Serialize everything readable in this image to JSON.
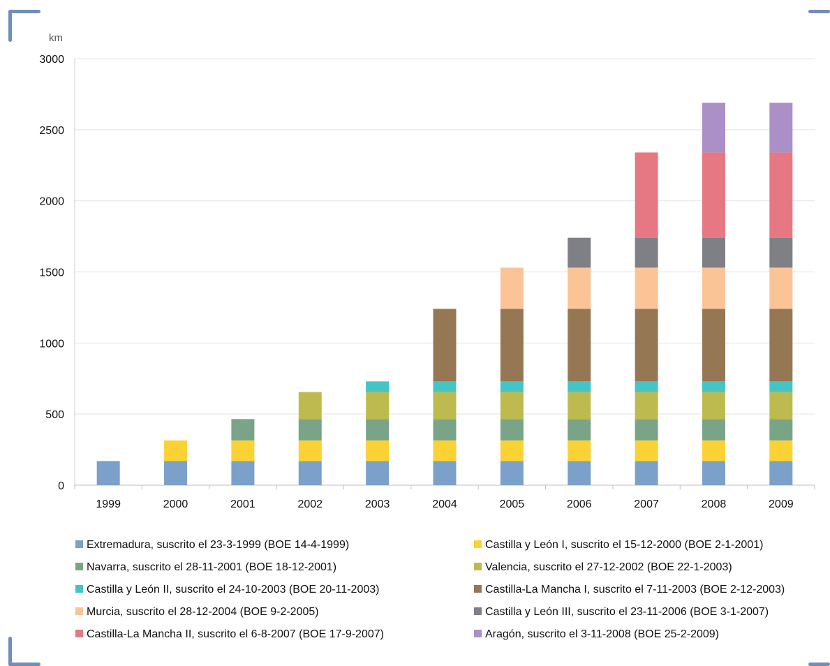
{
  "chart_data": {
    "type": "bar",
    "stacked": true,
    "ylabel": "km",
    "ylim": [
      0,
      3000
    ],
    "yticks": [
      0,
      500,
      1000,
      1500,
      2000,
      2500,
      3000
    ],
    "grid": true,
    "legend_position": "bottom",
    "categories": [
      "1999",
      "2000",
      "2001",
      "2002",
      "2003",
      "2004",
      "2005",
      "2006",
      "2007",
      "2008",
      "2009"
    ],
    "series": [
      {
        "name": "Extremadura, suscrito el 23-3-1999 (BOE 14-4-1999)",
        "color": "#7ba0ca",
        "values": [
          170,
          170,
          170,
          170,
          170,
          170,
          170,
          170,
          170,
          170,
          170
        ]
      },
      {
        "name": "Castilla y León I, suscrito el 15-12-2000 (BOE 2-1-2001)",
        "color": "#fbd233",
        "values": [
          0,
          145,
          145,
          145,
          145,
          145,
          145,
          145,
          145,
          145,
          145
        ]
      },
      {
        "name": "Navarra, suscrito el 28-11-2001 (BOE 18-12-2001)",
        "color": "#79a488",
        "values": [
          0,
          0,
          150,
          150,
          150,
          150,
          150,
          150,
          150,
          150,
          150
        ]
      },
      {
        "name": "Valencia, suscrito el 27-12-2002 (BOE 22-1-2003)",
        "color": "#bdbb50",
        "values": [
          0,
          0,
          0,
          190,
          190,
          190,
          190,
          190,
          190,
          190,
          190
        ]
      },
      {
        "name": "Castilla y León II, suscrito el 24-10-2003 (BOE 20-11-2003)",
        "color": "#45c3c5",
        "values": [
          0,
          0,
          0,
          0,
          75,
          75,
          75,
          75,
          75,
          75,
          75
        ]
      },
      {
        "name": "Castilla-La Mancha I, suscrito el 7-11-2003 (BOE 2-12-2003)",
        "color": "#957754",
        "values": [
          0,
          0,
          0,
          0,
          0,
          510,
          510,
          510,
          510,
          510,
          510
        ]
      },
      {
        "name": "Murcia, suscrito el 28-12-2004 (BOE 9-2-2005)",
        "color": "#fbc497",
        "values": [
          0,
          0,
          0,
          0,
          0,
          0,
          290,
          290,
          290,
          290,
          290
        ]
      },
      {
        "name": "Castilla y León III, suscrito el 23-11-2006 (BOE 3-1-2007)",
        "color": "#7f7f86",
        "values": [
          0,
          0,
          0,
          0,
          0,
          0,
          0,
          210,
          210,
          210,
          210
        ]
      },
      {
        "name": "Castilla-La Mancha II, suscrito el 6-8-2007 (BOE 17-9-2007)",
        "color": "#e57882",
        "values": [
          0,
          0,
          0,
          0,
          0,
          0,
          0,
          0,
          600,
          600,
          600
        ]
      },
      {
        "name": "Aragón, suscrito el 3-11-2008 (BOE 25-2-2009)",
        "color": "#aa90c6",
        "values": [
          0,
          0,
          0,
          0,
          0,
          0,
          0,
          0,
          0,
          350,
          350
        ]
      }
    ]
  }
}
